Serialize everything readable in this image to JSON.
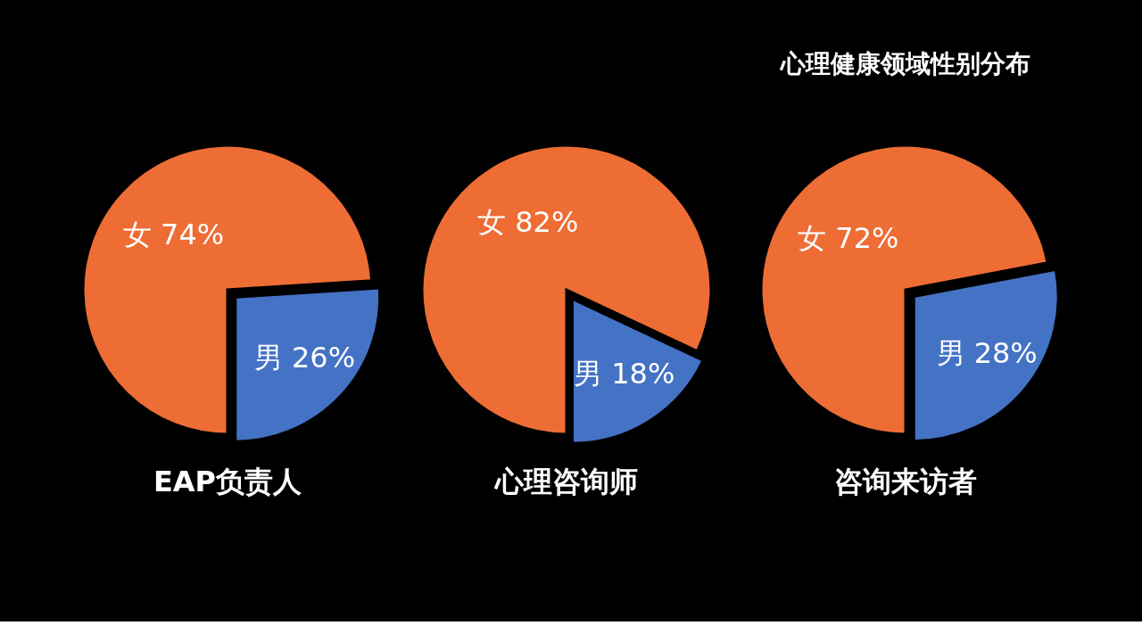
{
  "chart_data": [
    {
      "type": "pie",
      "title": "EAP负责人",
      "categories": [
        "女",
        "男"
      ],
      "values": [
        74,
        26
      ],
      "colors": [
        "#ed6d35",
        "#4472c4"
      ],
      "value_labels": [
        "74%",
        "26%"
      ]
    },
    {
      "type": "pie",
      "title": "心理咨询师",
      "categories": [
        "女",
        "男"
      ],
      "values": [
        82,
        18
      ],
      "colors": [
        "#ed6d35",
        "#4472c4"
      ],
      "value_labels": [
        "82%",
        "18%"
      ]
    },
    {
      "type": "pie",
      "title": "咨询来访者",
      "categories": [
        "女",
        "男"
      ],
      "values": [
        72,
        28
      ],
      "colors": [
        "#ed6d35",
        "#4472c4"
      ],
      "value_labels": [
        "72%",
        "28%"
      ],
      "annotations": [
        "心理健康领域性别分布"
      ]
    }
  ]
}
